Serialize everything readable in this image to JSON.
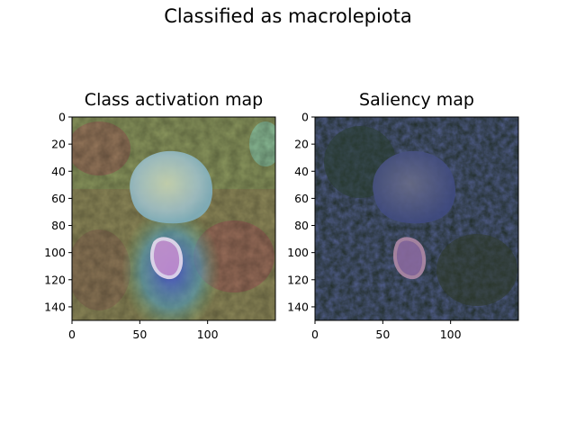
{
  "suptitle": "Classified as macrolepiota",
  "chart_data": [
    {
      "type": "image",
      "title": "Class activation map",
      "xlim": [
        0,
        150
      ],
      "ylim": [
        150,
        0
      ],
      "xticks": [
        0,
        50,
        100
      ],
      "yticks": [
        0,
        20,
        40,
        60,
        80,
        100,
        120,
        140
      ]
    },
    {
      "type": "image",
      "title": "Saliency map",
      "xlim": [
        0,
        150
      ],
      "ylim": [
        150,
        0
      ],
      "xticks": [
        0,
        50,
        100
      ],
      "yticks": [
        0,
        20,
        40,
        60,
        80,
        100,
        120,
        140
      ]
    }
  ]
}
